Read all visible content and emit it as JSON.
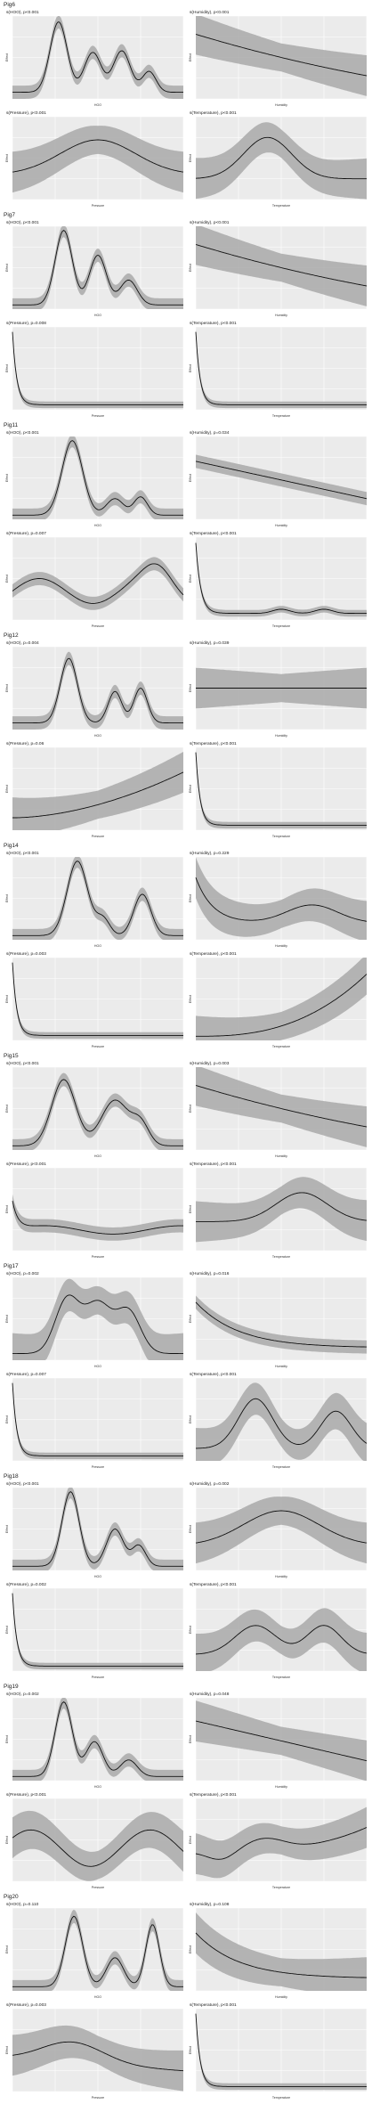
{
  "chart_data": [
    {
      "group": "Pig6",
      "panels": [
        {
          "title": "s(HOO), p<0.001",
          "type": "line",
          "xlabel": "HOO",
          "ylabel": "Effect",
          "shape": "h1",
          "band": "mid"
        },
        {
          "title": "s(Humidity), p<0.001",
          "type": "line",
          "xlabel": "Humidity",
          "ylabel": "Effect",
          "shape": "decreasing",
          "band": "wide"
        },
        {
          "title": "s(Pressure), p<0.001",
          "type": "line",
          "xlabel": "Pressure",
          "ylabel": "Effect",
          "shape": "hump_broad",
          "band": "wide"
        },
        {
          "title": "s(Temperature), p<0.001",
          "type": "line",
          "xlabel": "Temperature",
          "ylabel": "Effect",
          "shape": "hump_low",
          "band": "wide"
        }
      ]
    },
    {
      "group": "Pig7",
      "panels": [
        {
          "title": "s(HOO), p<0.001",
          "type": "line",
          "xlabel": "HOO",
          "ylabel": "Effect",
          "shape": "h2",
          "band": "mid"
        },
        {
          "title": "s(Humidity), p<0.001",
          "type": "line",
          "xlabel": "Humidity",
          "ylabel": "Effect",
          "shape": "decreasing",
          "band": "wide"
        },
        {
          "title": "s(Pressure), p=0.008",
          "type": "line",
          "xlabel": "Pressure",
          "ylabel": "Effect",
          "shape": "spike_left",
          "band": "narrow"
        },
        {
          "title": "s(Temperature), p<0.001",
          "type": "line",
          "xlabel": "Temperature",
          "ylabel": "Effect",
          "shape": "spike_left",
          "band": "narrow"
        }
      ]
    },
    {
      "group": "Pig11",
      "panels": [
        {
          "title": "s(HOO), p<0.001",
          "type": "line",
          "xlabel": "HOO",
          "ylabel": "Effect",
          "shape": "h3",
          "band": "mid"
        },
        {
          "title": "s(Humidity), p=0.034",
          "type": "line",
          "xlabel": "Humidity",
          "ylabel": "Effect",
          "shape": "decreasing_soft",
          "band": "mid"
        },
        {
          "title": "s(Pressure), p=0.007",
          "type": "line",
          "xlabel": "Pressure",
          "ylabel": "Effect",
          "shape": "wavy",
          "band": "mid"
        },
        {
          "title": "s(Temperature), p<0.001",
          "type": "line",
          "xlabel": "Temperature",
          "ylabel": "Effect",
          "shape": "spike_left_bumps",
          "band": "narrow"
        }
      ]
    },
    {
      "group": "Pig12",
      "panels": [
        {
          "title": "s(HOO), p=0.004",
          "type": "line",
          "xlabel": "HOO",
          "ylabel": "Effect",
          "shape": "h4",
          "band": "mid"
        },
        {
          "title": "s(Humidity), p=0.039",
          "type": "line",
          "xlabel": "Humidity",
          "ylabel": "Effect",
          "shape": "flat",
          "band": "wide"
        },
        {
          "title": "s(Pressure), p=0.06",
          "type": "line",
          "xlabel": "Pressure",
          "ylabel": "Effect",
          "shape": "increasing",
          "band": "wide"
        },
        {
          "title": "s(Temperature), p<0.001",
          "type": "line",
          "xlabel": "Temperature",
          "ylabel": "Effect",
          "shape": "spike_left",
          "band": "narrow"
        }
      ]
    },
    {
      "group": "Pig14",
      "panels": [
        {
          "title": "s(HOO), p<0.001",
          "type": "line",
          "xlabel": "HOO",
          "ylabel": "Effect",
          "shape": "h5",
          "band": "mid"
        },
        {
          "title": "s(Humidity), p=0.229",
          "type": "line",
          "xlabel": "Humidity",
          "ylabel": "Effect",
          "shape": "u_hump",
          "band": "wide"
        },
        {
          "title": "s(Pressure), p=0.003",
          "type": "line",
          "xlabel": "Pressure",
          "ylabel": "Effect",
          "shape": "spike_left",
          "band": "narrow"
        },
        {
          "title": "s(Temperature), p<0.001",
          "type": "line",
          "xlabel": "Temperature",
          "ylabel": "Effect",
          "shape": "exp_increasing",
          "band": "wide"
        }
      ]
    },
    {
      "group": "Pig15",
      "panels": [
        {
          "title": "s(HOO), p<0.001",
          "type": "line",
          "xlabel": "HOO",
          "ylabel": "Effect",
          "shape": "h6",
          "band": "mid"
        },
        {
          "title": "s(Humidity), p=0.003",
          "type": "line",
          "xlabel": "Humidity",
          "ylabel": "Effect",
          "shape": "decreasing",
          "band": "wide"
        },
        {
          "title": "s(Pressure), p<0.001",
          "type": "line",
          "xlabel": "Pressure",
          "ylabel": "Effect",
          "shape": "spike_small_wave",
          "band": "mid"
        },
        {
          "title": "s(Temperature), p<0.001",
          "type": "line",
          "xlabel": "Temperature",
          "ylabel": "Effect",
          "shape": "hump_right",
          "band": "wide"
        }
      ]
    },
    {
      "group": "Pig17",
      "panels": [
        {
          "title": "s(HOO), p=0.002",
          "type": "line",
          "xlabel": "HOO",
          "ylabel": "Effect",
          "shape": "h7",
          "band": "wide"
        },
        {
          "title": "s(Humidity), p=0.016",
          "type": "line",
          "xlabel": "Humidity",
          "ylabel": "Effect",
          "shape": "decreasing_flat",
          "band": "mid"
        },
        {
          "title": "s(Pressure), p=0.007",
          "type": "line",
          "xlabel": "Pressure",
          "ylabel": "Effect",
          "shape": "spike_left",
          "band": "narrow"
        },
        {
          "title": "s(Temperature), p<0.001",
          "type": "line",
          "xlabel": "Temperature",
          "ylabel": "Effect",
          "shape": "two_humps",
          "band": "wide"
        }
      ]
    },
    {
      "group": "Pig18",
      "panels": [
        {
          "title": "s(HOO), p<0.001",
          "type": "line",
          "xlabel": "HOO",
          "ylabel": "Effect",
          "shape": "h8",
          "band": "mid"
        },
        {
          "title": "s(Humidity), p=0.002",
          "type": "line",
          "xlabel": "Humidity",
          "ylabel": "Effect",
          "shape": "hump_broad",
          "band": "wide"
        },
        {
          "title": "s(Pressure), p=0.002",
          "type": "line",
          "xlabel": "Pressure",
          "ylabel": "Effect",
          "shape": "spike_left",
          "band": "narrow"
        },
        {
          "title": "s(Temperature), p<0.001",
          "type": "line",
          "xlabel": "Temperature",
          "ylabel": "Effect",
          "shape": "two_humps_sym",
          "band": "wide"
        }
      ]
    },
    {
      "group": "Pig19",
      "panels": [
        {
          "title": "s(HOO), p=0.002",
          "type": "line",
          "xlabel": "HOO",
          "ylabel": "Effect",
          "shape": "h9",
          "band": "mid"
        },
        {
          "title": "s(Humidity), p=0.048",
          "type": "line",
          "xlabel": "Humidity",
          "ylabel": "Effect",
          "shape": "decreasing_linear",
          "band": "wide"
        },
        {
          "title": "s(Pressure), p<0.001",
          "type": "line",
          "xlabel": "Pressure",
          "ylabel": "Effect",
          "shape": "waves",
          "band": "wide"
        },
        {
          "title": "s(Temperature), p<0.001",
          "type": "line",
          "xlabel": "Temperature",
          "ylabel": "Effect",
          "shape": "dip_hump_rise",
          "band": "wide"
        }
      ]
    },
    {
      "group": "Pig20",
      "panels": [
        {
          "title": "s(HOO), p=0.110",
          "type": "line",
          "xlabel": "HOO",
          "ylabel": "Effect",
          "shape": "h10",
          "band": "mid"
        },
        {
          "title": "s(Humidity), p=0.108",
          "type": "line",
          "xlabel": "Humidity",
          "ylabel": "Effect",
          "shape": "decreasing_flat",
          "band": "wide"
        },
        {
          "title": "s(Pressure), p=0.003",
          "type": "line",
          "xlabel": "Pressure",
          "ylabel": "Effect",
          "shape": "hump_fall",
          "band": "wide"
        },
        {
          "title": "s(Temperature), p<0.001",
          "type": "line",
          "xlabel": "Temperature",
          "ylabel": "Effect",
          "shape": "spike_left",
          "band": "narrow"
        }
      ]
    }
  ]
}
